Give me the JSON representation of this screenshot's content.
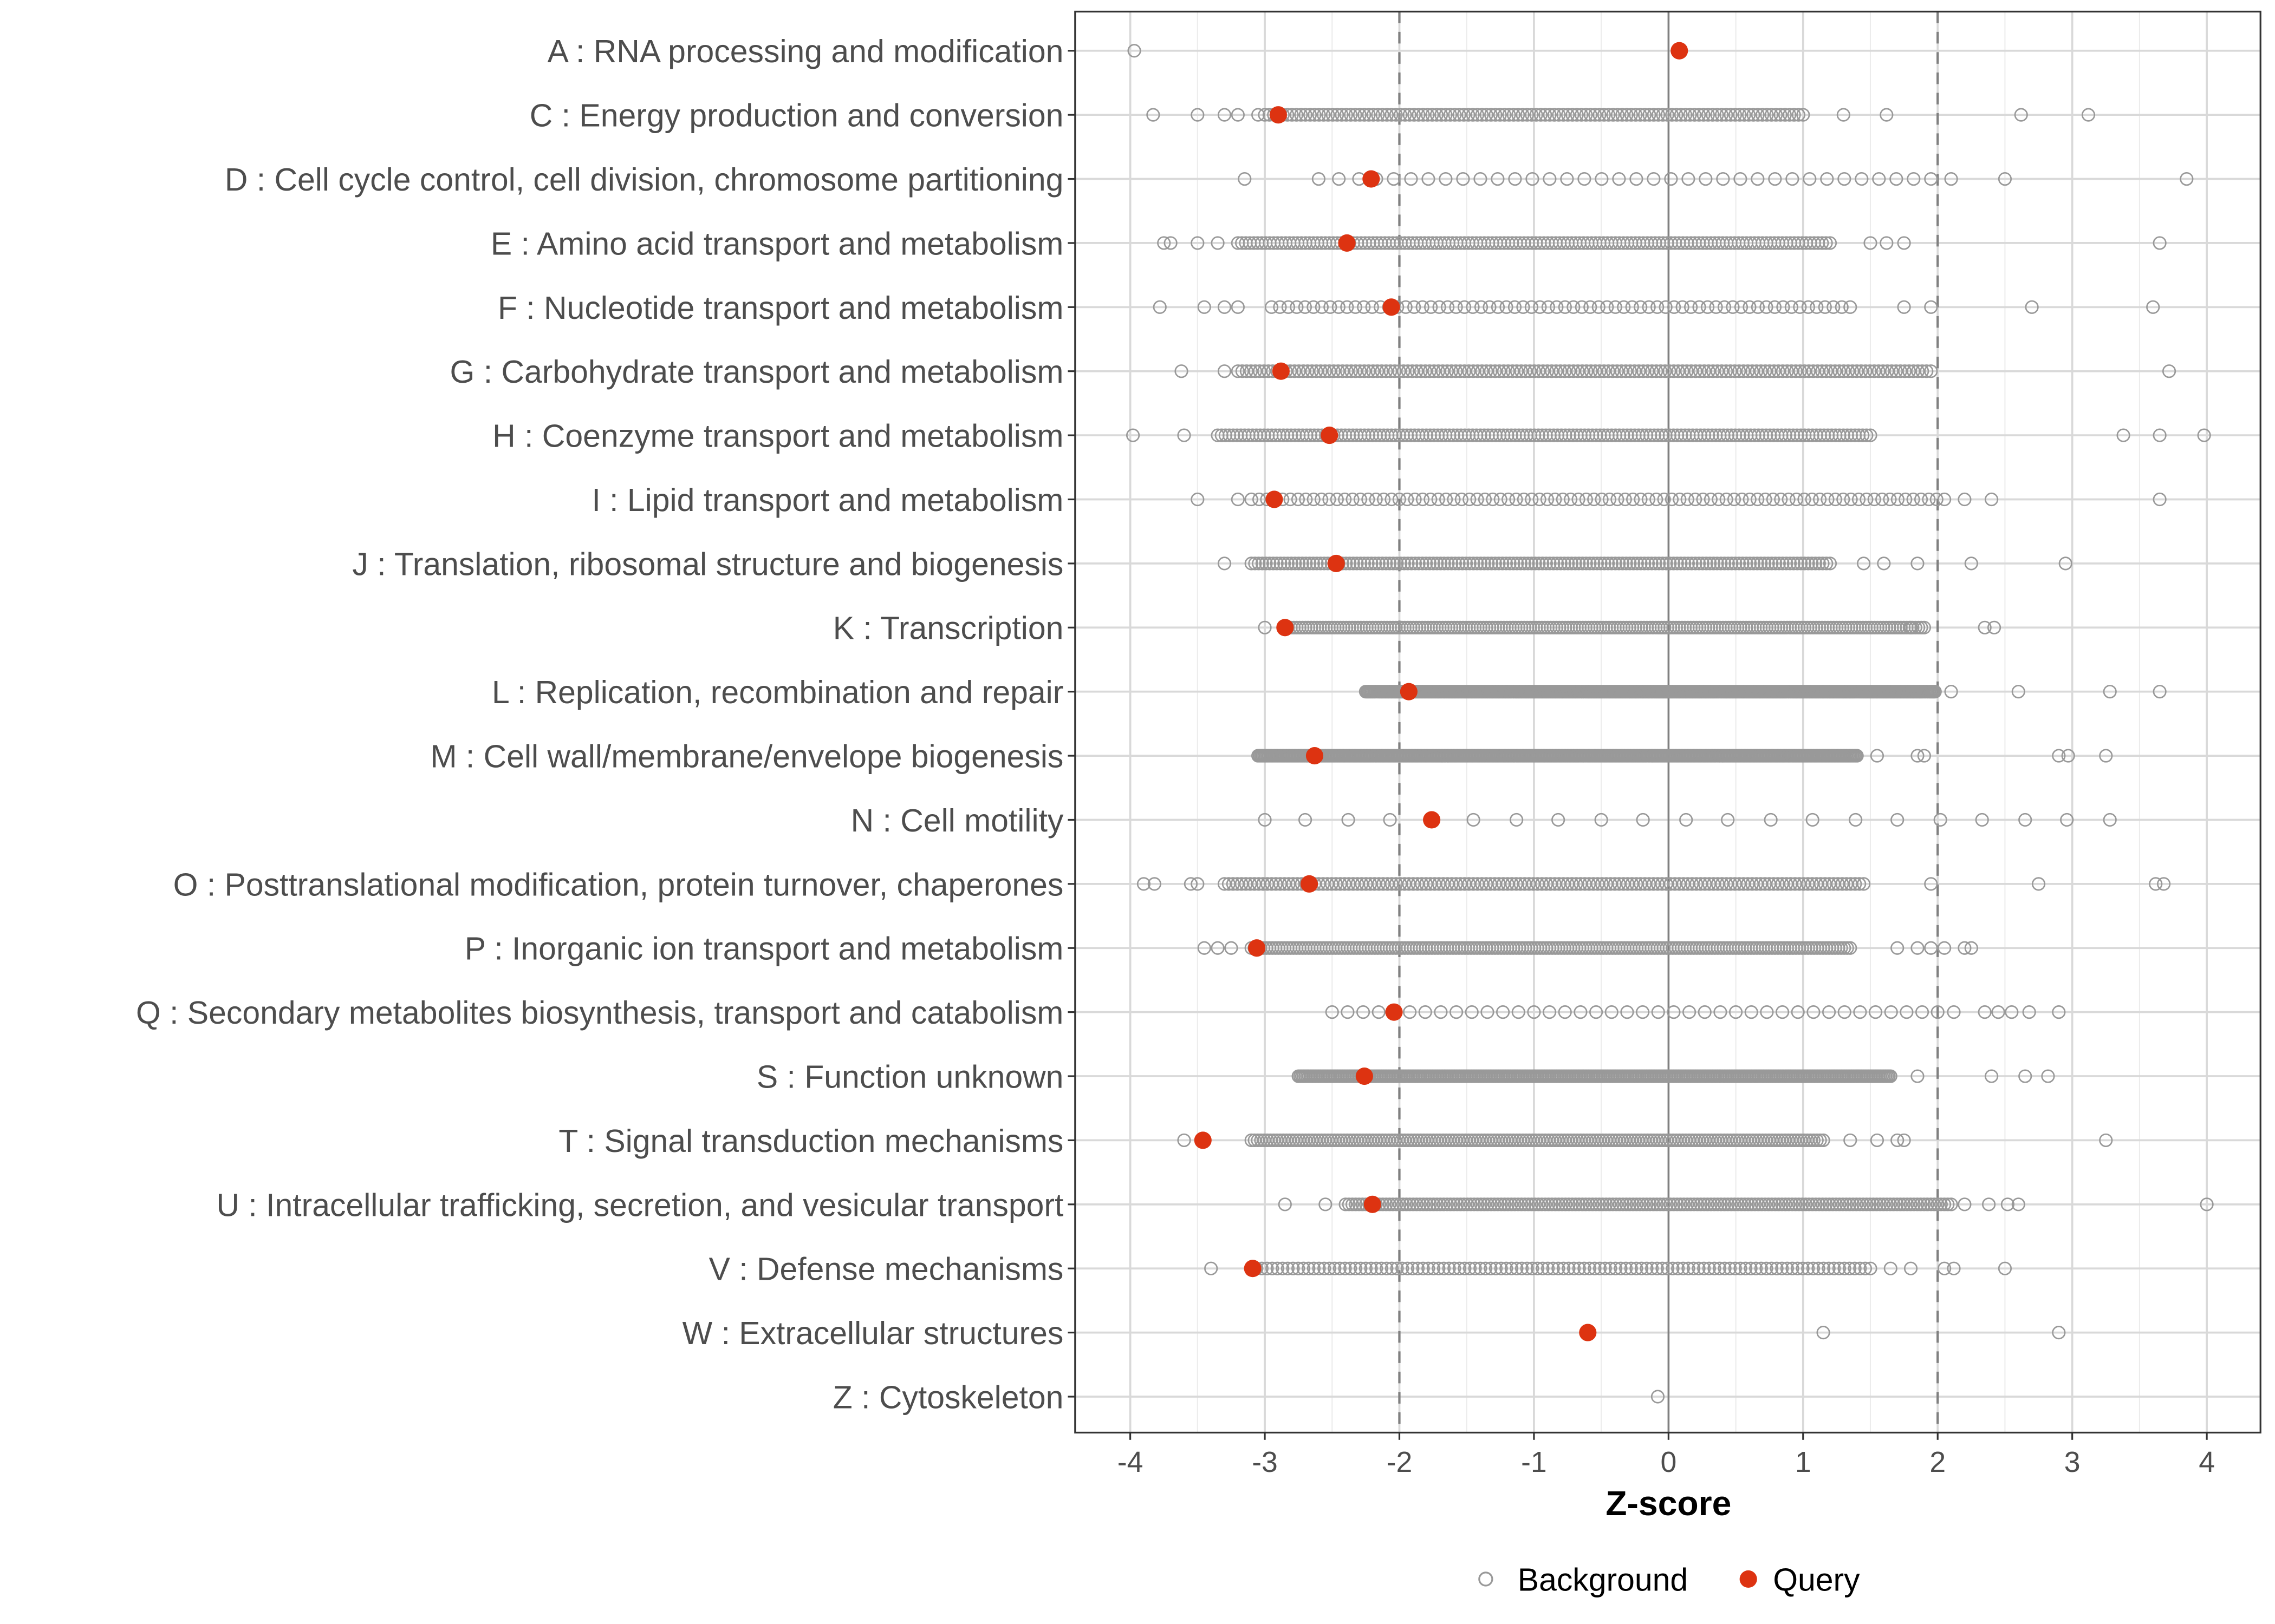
{
  "chart_data": {
    "type": "scatter",
    "title": "",
    "xlabel": "Z-score",
    "ylabel": "",
    "xlim": [
      -4.4,
      4.4
    ],
    "xticks": [
      -4,
      -3,
      -2,
      -1,
      0,
      1,
      2,
      3,
      4
    ],
    "xtick_labels": [
      "-4",
      "-3",
      "-2",
      "-1",
      "0",
      "1",
      "2",
      "3",
      "4"
    ],
    "reference_lines": {
      "dashed": [
        -2,
        2
      ],
      "solid": [
        0
      ]
    },
    "grid": true,
    "legend": {
      "position": "bottom",
      "entries": [
        {
          "label": "Background",
          "style": "open-circle",
          "color": "#999999"
        },
        {
          "label": "Query",
          "style": "filled-circle",
          "color": "#dd3311"
        }
      ]
    },
    "categories": [
      {
        "label": "A : RNA processing and modification",
        "query": 0.08,
        "background": {
          "points": [
            -3.97
          ],
          "dense": null
        }
      },
      {
        "label": "C : Energy production and conversion",
        "query": -2.9,
        "background": {
          "points": [
            -3.83,
            -3.5,
            -3.3,
            -3.2,
            -3.05,
            1.3,
            1.62,
            2.62,
            3.12
          ],
          "dense": [
            -3.0,
            1.0,
            120
          ]
        }
      },
      {
        "label": "D : Cell cycle control, cell division, chromosome partitioning",
        "query": -2.21,
        "background": {
          "points": [
            -3.15,
            -2.6,
            -2.45,
            2.1,
            2.5,
            3.85
          ],
          "dense": [
            -2.3,
            1.95,
            34
          ]
        }
      },
      {
        "label": "E : Amino acid transport and metabolism",
        "query": -2.39,
        "background": {
          "points": [
            -3.75,
            -3.7,
            -3.5,
            -3.35,
            1.5,
            1.62,
            1.75,
            3.65
          ],
          "dense": [
            -3.2,
            1.2,
            150
          ]
        }
      },
      {
        "label": "F : Nucleotide transport and metabolism",
        "query": -2.06,
        "background": {
          "points": [
            -3.78,
            -3.45,
            -3.3,
            -3.2,
            1.75,
            1.95,
            2.7,
            3.6
          ],
          "dense": [
            -2.95,
            1.35,
            70
          ]
        }
      },
      {
        "label": "G : Carbohydrate transport and metabolism",
        "query": -2.88,
        "background": {
          "points": [
            -3.62,
            -3.3,
            3.72
          ],
          "dense": [
            -3.2,
            1.95,
            160
          ]
        }
      },
      {
        "label": "H : Coenzyme transport and metabolism",
        "query": -2.52,
        "background": {
          "points": [
            -3.98,
            -3.6,
            3.38,
            3.65,
            3.98
          ],
          "dense": [
            -3.35,
            1.5,
            170
          ]
        }
      },
      {
        "label": "I : Lipid transport and metabolism",
        "query": -2.93,
        "background": {
          "points": [
            -3.5,
            -3.2,
            2.2,
            2.4,
            3.65
          ],
          "dense": [
            -3.1,
            2.05,
            90
          ]
        }
      },
      {
        "label": "J : Translation, ribosomal structure and biogenesis",
        "query": -2.47,
        "background": {
          "points": [
            -3.3,
            1.45,
            1.6,
            1.85,
            2.25,
            2.95
          ],
          "dense": [
            -3.1,
            1.2,
            160
          ]
        }
      },
      {
        "label": "K : Transcription",
        "query": -2.85,
        "background": {
          "points": [
            -3.0,
            1.8,
            2.35,
            2.42
          ],
          "dense": [
            -2.85,
            1.9,
            220
          ]
        }
      },
      {
        "label": "L : Replication, recombination and repair",
        "query": -1.93,
        "background": {
          "points": [
            2.1,
            2.6,
            3.28,
            3.65
          ],
          "dense": [
            -2.25,
            1.98,
            400
          ]
        }
      },
      {
        "label": "M : Cell wall/membrane/envelope biogenesis",
        "query": -2.63,
        "background": {
          "points": [
            1.55,
            1.85,
            1.9,
            2.9,
            2.97,
            3.25
          ],
          "dense": [
            -3.05,
            1.4,
            400
          ]
        }
      },
      {
        "label": "N : Cell motility",
        "query": -1.76,
        "background": {
          "points": [
            -3.0,
            -2.7,
            -2.38,
            -2.07,
            -1.45,
            -1.13,
            -0.82,
            -0.5,
            -0.19,
            0.13,
            0.44,
            0.76,
            1.07,
            1.39,
            1.7,
            2.02,
            2.33,
            2.65,
            2.96,
            3.28
          ],
          "dense": null
        }
      },
      {
        "label": "O : Posttranslational modification, protein turnover, chaperones",
        "query": -2.67,
        "background": {
          "points": [
            -3.9,
            -3.82,
            -3.55,
            -3.5,
            1.95,
            2.75,
            3.62,
            3.68
          ],
          "dense": [
            -3.3,
            1.45,
            150
          ]
        }
      },
      {
        "label": "P : Inorganic ion transport and metabolism",
        "query": -3.06,
        "background": {
          "points": [
            -3.45,
            -3.35,
            -3.25,
            1.7,
            1.85,
            1.95,
            2.05,
            2.2,
            2.25
          ],
          "dense": [
            -3.1,
            1.35,
            200
          ]
        }
      },
      {
        "label": "Q : Secondary metabolites biosynthesis, transport and catabolism",
        "query": -2.04,
        "background": {
          "points": [
            2.12,
            2.35,
            2.45,
            2.55,
            2.68,
            2.9
          ],
          "dense": [
            -2.5,
            2.0,
            40
          ]
        }
      },
      {
        "label": "S : Function unknown",
        "query": -2.26,
        "background": {
          "points": [
            1.85,
            2.4,
            2.65,
            2.82
          ],
          "dense": [
            -2.75,
            1.65,
            350
          ]
        }
      },
      {
        "label": "T : Signal transduction mechanisms",
        "query": -3.46,
        "background": {
          "points": [
            -3.6,
            1.35,
            1.55,
            1.7,
            1.75,
            3.25
          ],
          "dense": [
            -3.1,
            1.15,
            180
          ]
        }
      },
      {
        "label": "U : Intracellular trafficking, secretion, and vesicular transport",
        "query": -2.2,
        "background": {
          "points": [
            -2.85,
            -2.55,
            2.2,
            2.38,
            2.52,
            2.6,
            4.0
          ],
          "dense": [
            -2.4,
            2.1,
            180
          ]
        }
      },
      {
        "label": "V : Defense mechanisms",
        "query": -3.09,
        "background": {
          "points": [
            -3.4,
            1.65,
            1.8,
            2.05,
            2.12,
            2.5
          ],
          "dense": [
            -3.1,
            1.5,
            120
          ]
        }
      },
      {
        "label": "W : Extracellular structures",
        "query": -0.6,
        "background": {
          "points": [
            1.15,
            2.9
          ],
          "dense": null
        }
      },
      {
        "label": "Z : Cytoskeleton",
        "query": null,
        "background": {
          "points": [
            -0.08
          ],
          "dense": null
        }
      }
    ]
  }
}
